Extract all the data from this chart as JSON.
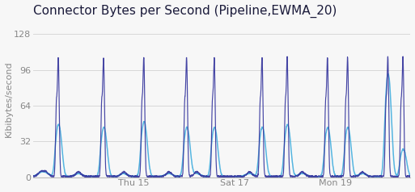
{
  "title": "Connector Bytes per Second (Pipeline,EWMA_20)",
  "ylabel": "Kibibytes/second",
  "yticks": [
    0,
    32,
    64,
    96,
    128
  ],
  "ylim": [
    0,
    140
  ],
  "xtick_labels": [
    "Thu 15",
    "Sat 17",
    "Mon 19"
  ],
  "xtick_pos": [
    2.0,
    4.0,
    6.0
  ],
  "xlim": [
    0,
    7.5
  ],
  "background_color": "#f7f7f7",
  "plot_bg_color": "#f7f7f7",
  "grid_color": "#d8d8d8",
  "line_color_dark": "#3b3ba0",
  "line_color_light": "#38aadd",
  "title_fontsize": 11,
  "axis_fontsize": 8,
  "tick_fontsize": 8,
  "title_color": "#1a1a3a",
  "tick_color": "#888888"
}
